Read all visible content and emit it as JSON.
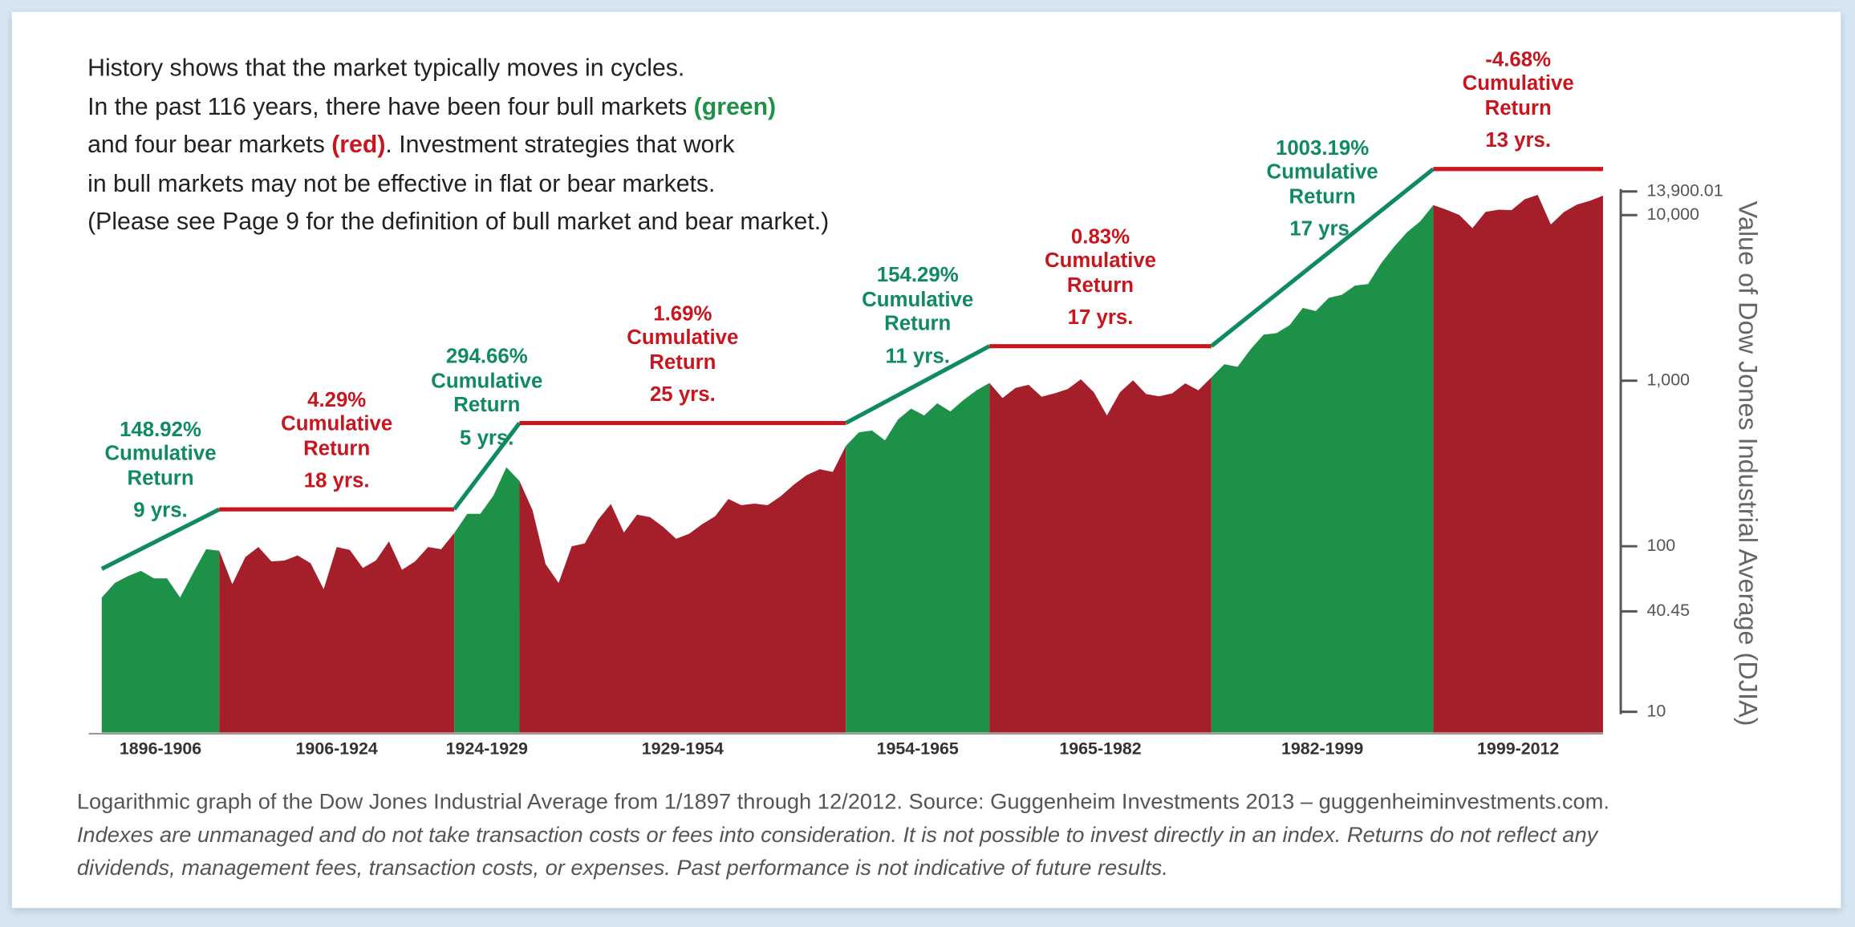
{
  "intro": [
    [
      "History shows that the market typically moves in cycles."
    ],
    [
      "In the past 116 years, there have been four bull markets ",
      "(green)"
    ],
    [
      "and four bear markets ",
      "(red)",
      ".  Investment strategies that work"
    ],
    [
      "in bull markets may not be effective in flat or bear markets."
    ],
    [
      "(Please see Page 9 for the definition of bull market and bear market.)"
    ]
  ],
  "chart_data": {
    "type": "area",
    "log_scale": true,
    "y_label": "Value of Dow Jones Industrial Average (DJIA)",
    "xlim": [
      1897,
      2012
    ],
    "ylim": [
      7.5,
      20000
    ],
    "yticks": [
      10,
      40.45,
      100,
      {
        "value": 1000,
        "label": "1,000"
      },
      {
        "value": 10000,
        "label": "10,000"
      },
      {
        "value": 13900.01,
        "label": "13,900.01"
      }
    ],
    "x": [
      1897,
      1898,
      1899,
      1900,
      1901,
      1902,
      1903,
      1904,
      1905,
      1906,
      1907,
      1908,
      1909,
      1910,
      1911,
      1912,
      1913,
      1914,
      1915,
      1916,
      1917,
      1918,
      1919,
      1920,
      1921,
      1922,
      1923,
      1924,
      1925,
      1926,
      1927,
      1928,
      1929,
      1930,
      1931,
      1932,
      1933,
      1934,
      1935,
      1936,
      1937,
      1938,
      1939,
      1940,
      1941,
      1942,
      1943,
      1944,
      1945,
      1946,
      1947,
      1948,
      1949,
      1950,
      1951,
      1952,
      1953,
      1954,
      1955,
      1956,
      1957,
      1958,
      1959,
      1960,
      1961,
      1962,
      1963,
      1964,
      1965,
      1966,
      1967,
      1968,
      1969,
      1970,
      1971,
      1972,
      1973,
      1974,
      1975,
      1976,
      1977,
      1978,
      1979,
      1980,
      1981,
      1982,
      1983,
      1984,
      1985,
      1986,
      1987,
      1988,
      1989,
      1990,
      1991,
      1992,
      1993,
      1994,
      1995,
      1996,
      1997,
      1998,
      1999,
      2000,
      2001,
      2002,
      2003,
      2004,
      2005,
      2006,
      2007,
      2008,
      2009,
      2010,
      2011,
      2012
    ],
    "values": [
      49,
      60,
      66,
      71,
      64,
      64,
      49,
      69,
      96,
      94,
      59,
      86,
      99,
      81,
      82,
      88,
      79,
      55,
      99,
      95,
      74,
      82,
      107,
      72,
      81,
      99,
      96,
      120,
      157,
      157,
      202,
      300,
      248,
      165,
      78,
      60,
      100,
      104,
      144,
      180,
      121,
      155,
      150,
      131,
      111,
      119,
      136,
      152,
      193,
      177,
      181,
      177,
      200,
      235,
      269,
      292,
      281,
      404,
      488,
      500,
      436,
      584,
      679,
      616,
      731,
      652,
      763,
      874,
      969,
      786,
      905,
      944,
      800,
      839,
      890,
      1020,
      851,
      616,
      852,
      1005,
      831,
      805,
      839,
      964,
      875,
      1047,
      1259,
      1212,
      1547,
      1896,
      1939,
      2169,
      2753,
      2634,
      3169,
      3301,
      3754,
      3834,
      5117,
      6448,
      7908,
      9181,
      11497,
      10787,
      10021,
      8342,
      10454,
      10783,
      10718,
      12463,
      13265,
      8776,
      10428,
      11578,
      12218,
      13104
    ],
    "periods": [
      {
        "label": "1896-1906",
        "start": 1897,
        "end": 1906,
        "color": "#1e9148",
        "line_color": "#0f8a62",
        "trend": [
          73,
          167
        ],
        "return": "148.92%",
        "cumulative": "Cumulative Return",
        "years": "9 yrs."
      },
      {
        "label": "1906-1924",
        "start": 1906,
        "end": 1924,
        "color": "#a51f2a",
        "line_color": "#c8161e",
        "trend": [
          167,
          167
        ],
        "return": "4.29%",
        "cumulative": "Cumulative Return",
        "years": "18 yrs."
      },
      {
        "label": "1924-1929",
        "start": 1924,
        "end": 1929,
        "color": "#1e9148",
        "line_color": "#0f8a62",
        "trend": [
          167,
          555
        ],
        "return": "294.66%",
        "cumulative": "Cumulative Return",
        "years": "5 yrs."
      },
      {
        "label": "1929-1954",
        "start": 1929,
        "end": 1954,
        "color": "#a51f2a",
        "line_color": "#c8161e",
        "trend": [
          555,
          555
        ],
        "return": "1.69%",
        "cumulative": "Cumulative Return",
        "years": "25 yrs."
      },
      {
        "label": "1954-1965",
        "start": 1954,
        "end": 1965,
        "color": "#1e9148",
        "line_color": "#0f8a62",
        "trend": [
          555,
          1617
        ],
        "return": "154.29%",
        "cumulative": "Cumulative Return",
        "years": "11 yrs."
      },
      {
        "label": "1965-1982",
        "start": 1965,
        "end": 1982,
        "color": "#a51f2a",
        "line_color": "#c8161e",
        "trend": [
          1617,
          1617
        ],
        "return": "0.83%",
        "cumulative": "Cumulative Return",
        "years": "17 yrs."
      },
      {
        "label": "1982-1999",
        "start": 1982,
        "end": 1999,
        "color": "#1e9148",
        "line_color": "#0f8a62",
        "trend": [
          1617,
          19000
        ],
        "return": "1003.19%",
        "cumulative": "Cumulative Return",
        "years": "17 yrs."
      },
      {
        "label": "1999-2012",
        "start": 1999,
        "end": 2012,
        "color": "#a51f2a",
        "line_color": "#c8161e",
        "trend": [
          19000,
          19000
        ],
        "return": "-4.68%",
        "cumulative": "Cumulative Return",
        "years": "13 yrs."
      }
    ]
  },
  "footer": {
    "source": "Logarithmic graph of the Dow Jones Industrial Average from 1/1897 through 12/2012.  Source: Guggenheim Investments 2013 – guggenheiminvestments.com.",
    "disclaimer": [
      "Indexes are unmanaged and do not take transaction costs or fees into consideration.  It is not possible to invest directly in an index.  Returns do not reflect any",
      "dividends, management fees, transaction costs, or expenses.  Past performance is not indicative of future results."
    ]
  }
}
